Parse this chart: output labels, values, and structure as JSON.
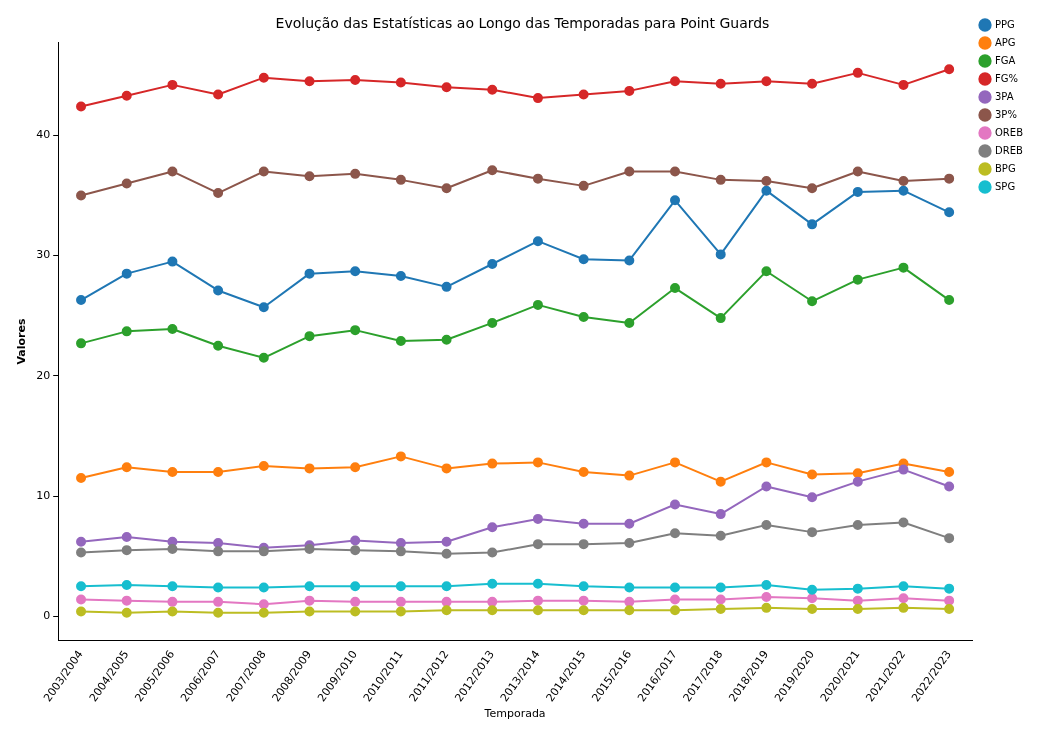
{
  "chart_data": {
    "type": "line",
    "title": "Evolução das Estatísticas ao Longo das Temporadas para Point Guards",
    "xlabel": "Temporada",
    "ylabel": "Valores",
    "categories": [
      "2003/2004",
      "2004/2005",
      "2005/2006",
      "2006/2007",
      "2007/2008",
      "2008/2009",
      "2009/2010",
      "2010/2011",
      "2011/2012",
      "2012/2013",
      "2013/2014",
      "2014/2015",
      "2015/2016",
      "2016/2017",
      "2017/2018",
      "2018/2019",
      "2019/2020",
      "2020/2021",
      "2021/2022",
      "2022/2023"
    ],
    "ylim": [
      -2,
      47.7
    ],
    "yticks": [
      0,
      10,
      20,
      30,
      40
    ],
    "grid": false,
    "legend": "top right",
    "marker": "circle",
    "line_style": "solid",
    "series": [
      {
        "name": "PPG",
        "color": "#1f77b4",
        "values": [
          26.3,
          28.5,
          29.5,
          27.1,
          25.7,
          28.5,
          28.7,
          28.3,
          27.4,
          29.3,
          31.2,
          29.7,
          29.6,
          34.6,
          30.1,
          35.4,
          32.6,
          35.3,
          35.4,
          33.6
        ]
      },
      {
        "name": "APG",
        "color": "#ff7f0e",
        "values": [
          11.5,
          12.4,
          12.0,
          12.0,
          12.5,
          12.3,
          12.4,
          13.3,
          12.3,
          12.7,
          12.8,
          12.0,
          11.7,
          12.8,
          11.2,
          12.8,
          11.8,
          11.9,
          12.7,
          12.0
        ]
      },
      {
        "name": "FGA",
        "color": "#2ca02c",
        "values": [
          22.7,
          23.7,
          23.9,
          22.5,
          21.5,
          23.3,
          23.8,
          22.9,
          23.0,
          24.4,
          25.9,
          24.9,
          24.4,
          27.3,
          24.8,
          28.7,
          26.2,
          28.0,
          29.0,
          26.3
        ]
      },
      {
        "name": "FG%",
        "color": "#d62728",
        "values": [
          42.4,
          43.3,
          44.2,
          43.4,
          44.8,
          44.5,
          44.6,
          44.4,
          44.0,
          43.8,
          43.1,
          43.4,
          43.7,
          44.5,
          44.3,
          44.5,
          44.3,
          45.2,
          44.2,
          45.5
        ]
      },
      {
        "name": "3PA",
        "color": "#9467bd",
        "values": [
          6.2,
          6.6,
          6.2,
          6.1,
          5.7,
          5.9,
          6.3,
          6.1,
          6.2,
          7.4,
          8.1,
          7.7,
          7.7,
          9.3,
          8.5,
          10.8,
          9.9,
          11.2,
          12.2,
          10.8
        ]
      },
      {
        "name": "3P%",
        "color": "#8c564b",
        "values": [
          35.0,
          36.0,
          37.0,
          35.2,
          37.0,
          36.6,
          36.8,
          36.3,
          35.6,
          37.1,
          36.4,
          35.8,
          37.0,
          37.0,
          36.3,
          36.2,
          35.6,
          37.0,
          36.2,
          36.4
        ]
      },
      {
        "name": "OREB",
        "color": "#e377c2",
        "values": [
          1.4,
          1.3,
          1.2,
          1.2,
          1.0,
          1.3,
          1.2,
          1.2,
          1.2,
          1.2,
          1.3,
          1.3,
          1.2,
          1.4,
          1.4,
          1.6,
          1.5,
          1.3,
          1.5,
          1.3
        ]
      },
      {
        "name": "DREB",
        "color": "#7f7f7f",
        "values": [
          5.3,
          5.5,
          5.6,
          5.4,
          5.4,
          5.6,
          5.5,
          5.4,
          5.2,
          5.3,
          6.0,
          6.0,
          6.1,
          6.9,
          6.7,
          7.6,
          7.0,
          7.6,
          7.8,
          6.5
        ]
      },
      {
        "name": "BPG",
        "color": "#bcbd22",
        "values": [
          0.4,
          0.3,
          0.4,
          0.3,
          0.3,
          0.4,
          0.4,
          0.4,
          0.5,
          0.5,
          0.5,
          0.5,
          0.5,
          0.5,
          0.6,
          0.7,
          0.6,
          0.6,
          0.7,
          0.6
        ]
      },
      {
        "name": "SPG",
        "color": "#17becf",
        "values": [
          2.5,
          2.6,
          2.5,
          2.4,
          2.4,
          2.5,
          2.5,
          2.5,
          2.5,
          2.7,
          2.7,
          2.5,
          2.4,
          2.4,
          2.4,
          2.6,
          2.2,
          2.3,
          2.5,
          2.3
        ]
      }
    ]
  }
}
